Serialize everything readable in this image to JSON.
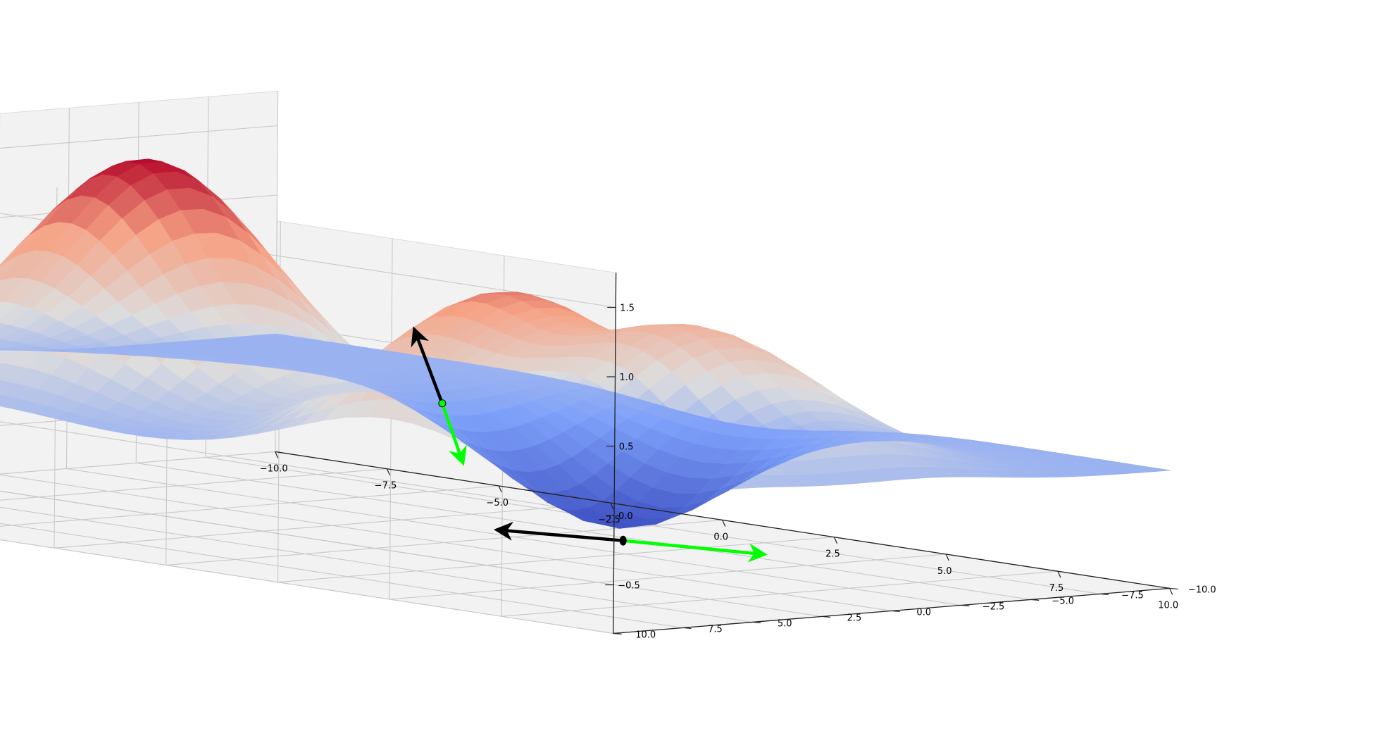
{
  "chart_data": {
    "type": "surface3d",
    "colormap": "coolwarm",
    "pane_color": "#f2f2f2",
    "grid": true,
    "x_ticks": [
      "−10.0",
      "−7.5",
      "−5.0",
      "−2.5",
      "0.0",
      "2.5",
      "5.0",
      "7.5",
      "10.0"
    ],
    "y_ticks": [
      "−10.0",
      "−7.5",
      "−5.0",
      "−2.5",
      "0.0",
      "2.5",
      "5.0",
      "7.5",
      "10.0"
    ],
    "z_ticks": [
      "−0.5",
      "0.0",
      "0.5",
      "1.0",
      "1.5"
    ],
    "xlim": [
      -10,
      10
    ],
    "ylim": [
      -10,
      10
    ],
    "zlim": [
      -0.85,
      1.75
    ],
    "surface": {
      "components": [
        {
          "kind": "peak",
          "x": -4.5,
          "y": 3.5,
          "height": 1.75
        },
        {
          "kind": "peak",
          "x": 5.0,
          "y": 6.0,
          "height": 1.25
        },
        {
          "kind": "peak",
          "x": 5.0,
          "y": -1.0,
          "height": 0.9
        },
        {
          "kind": "trough",
          "x": 0.5,
          "y": -5.5,
          "height": -0.85
        }
      ]
    },
    "surface_point": {
      "x": -1.0,
      "y": -1.5,
      "z": 0.08
    },
    "arrows_on_surface": [
      {
        "color": "#000000",
        "direction": "uphill"
      },
      {
        "color": "#00ff00",
        "direction": "downhill"
      }
    ],
    "floor_point": {
      "x": 1.2,
      "y": -4.5
    },
    "arrows_on_floor": [
      {
        "color": "#000000",
        "dx": -2.0,
        "dy": 1.3
      },
      {
        "color": "#00ff00",
        "dx": 2.4,
        "dy": -1.2
      }
    ]
  }
}
